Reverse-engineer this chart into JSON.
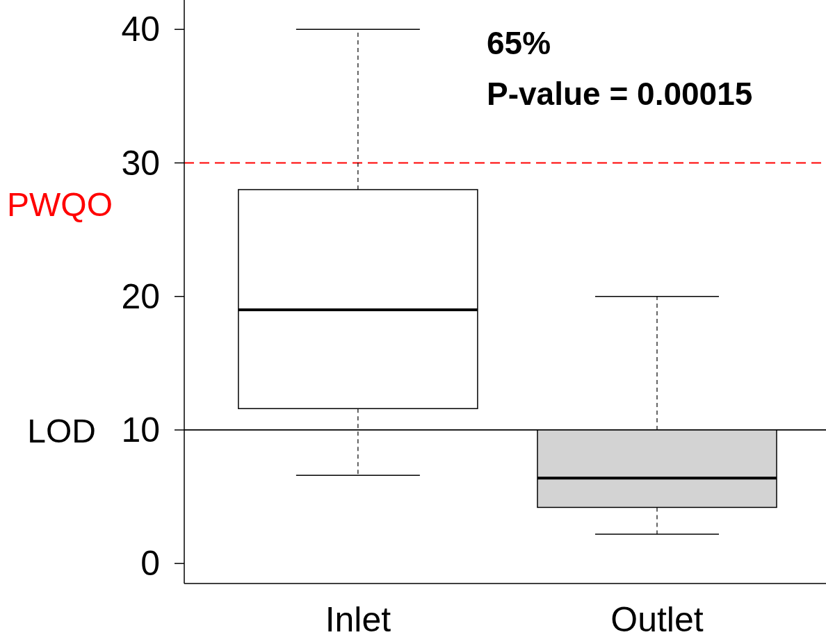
{
  "chart_data": {
    "type": "box",
    "categories": [
      "Inlet",
      "Outlet"
    ],
    "boxes": [
      {
        "low": 6.6,
        "q1": 11.6,
        "median": 19,
        "q3": 28,
        "high": 40
      },
      {
        "low": 2.2,
        "q1": 4.2,
        "median": 6.4,
        "q3": 10,
        "high": 20
      }
    ],
    "colors": [
      "#ffffff",
      "#d3d3d3"
    ],
    "ylim": [
      -1.5,
      42.2
    ],
    "yticks": [
      0,
      10,
      20,
      30,
      40
    ],
    "ref_lines": [
      {
        "axis": "y",
        "value": 30,
        "label": "PWQO",
        "color": "#ff0000",
        "line_style": "dashed"
      },
      {
        "axis": "y",
        "value": 10,
        "label": "LOD",
        "color": "#000000",
        "line_style": "solid"
      }
    ],
    "annotations": [
      "65%",
      "P-value = 0.00015"
    ]
  }
}
